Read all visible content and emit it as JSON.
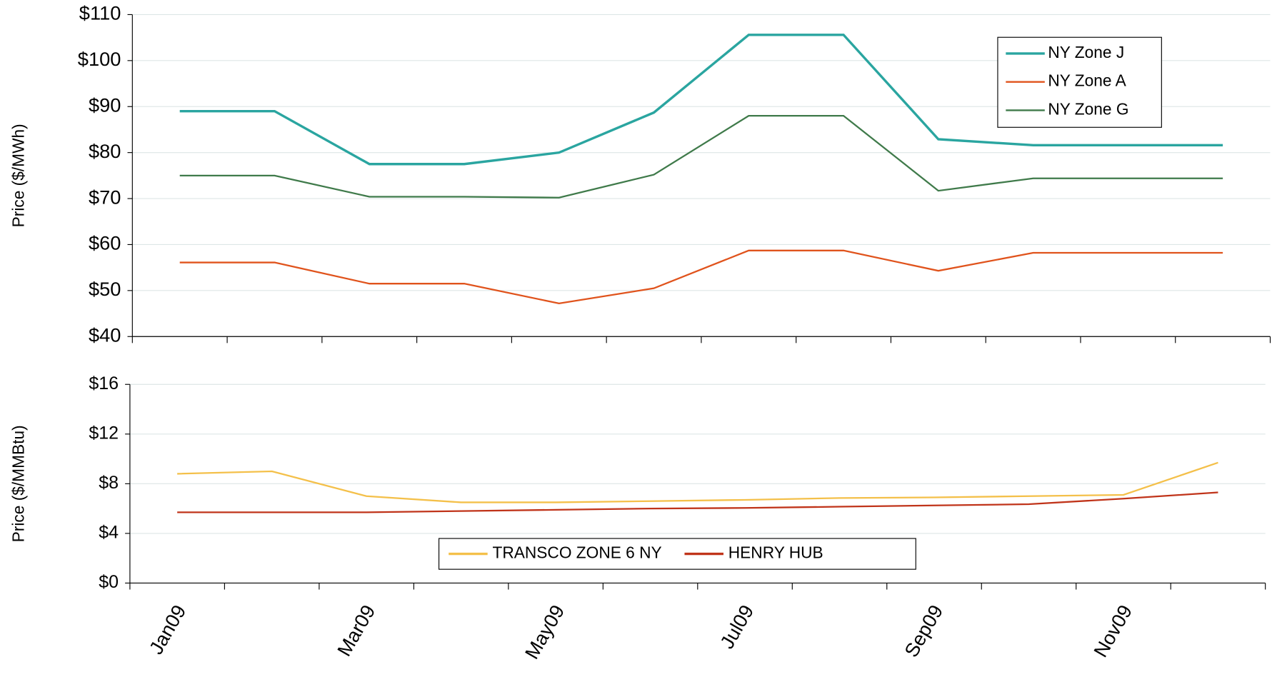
{
  "chart_data": [
    {
      "type": "line",
      "ylabel": "Price ($/MWh)",
      "ylim": [
        40,
        110
      ],
      "yticks": [
        {
          "value": 40,
          "label": "$40"
        },
        {
          "value": 50,
          "label": "$50"
        },
        {
          "value": 60,
          "label": "$60"
        },
        {
          "value": 70,
          "label": "$70"
        },
        {
          "value": 80,
          "label": "$80"
        },
        {
          "value": 90,
          "label": "$90"
        },
        {
          "value": 100,
          "label": "$100"
        },
        {
          "value": 110,
          "label": "$110"
        }
      ],
      "grid": true,
      "legend": "upper right",
      "series": [
        {
          "name": "NY Zone J",
          "color": "#2aa5a0",
          "values": [
            89,
            89,
            77.5,
            77.5,
            80,
            88.7,
            105.6,
            105.6,
            82.9,
            81.6,
            81.6,
            81.6
          ]
        },
        {
          "name": "NY Zone A",
          "color": "#e0531c",
          "values": [
            56.1,
            56.1,
            51.5,
            51.5,
            47.2,
            50.5,
            58.7,
            58.7,
            54.3,
            58.2,
            58.2,
            58.2
          ]
        },
        {
          "name": "NY Zone G",
          "color": "#3f7a4a",
          "values": [
            75,
            75,
            70.4,
            70.4,
            70.2,
            75.2,
            88,
            88,
            71.7,
            74.4,
            74.4,
            74.4
          ]
        }
      ]
    },
    {
      "type": "line",
      "ylabel": "Price ($/MMBtu)",
      "categories": [
        "Jan09",
        null,
        "Mar09",
        null,
        "May09",
        null,
        "Jul09",
        null,
        "Sep09",
        null,
        "Nov09",
        null
      ],
      "ylim": [
        0,
        16
      ],
      "yticks": [
        {
          "value": 0,
          "label": "$0"
        },
        {
          "value": 4,
          "label": "$4"
        },
        {
          "value": 8,
          "label": "$8"
        },
        {
          "value": 12,
          "label": "$12"
        },
        {
          "value": 16,
          "label": "$16"
        }
      ],
      "grid": true,
      "legend": "lower center",
      "series": [
        {
          "name": "TRANSCO ZONE 6 NY",
          "color": "#f4c04a",
          "values": [
            8.8,
            9.0,
            7.0,
            6.5,
            6.5,
            6.6,
            6.7,
            6.85,
            6.9,
            7.0,
            7.1,
            9.7
          ]
        },
        {
          "name": "HENRY HUB",
          "color": "#c0341a",
          "values": [
            5.7,
            5.7,
            5.7,
            5.8,
            5.9,
            6.0,
            6.05,
            6.15,
            6.25,
            6.35,
            6.8,
            7.3
          ]
        }
      ]
    }
  ]
}
